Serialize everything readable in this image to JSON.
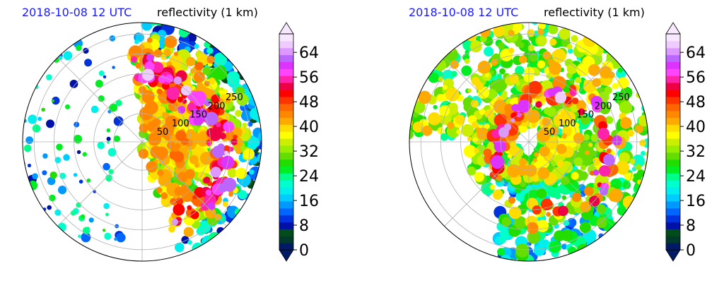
{
  "colors": {
    "time_label": "#1a1aff",
    "grid": "#b0b0b0",
    "colorbar": [
      "#001a66",
      "#003a2a",
      "#004d1a",
      "#0011aa",
      "#0033dd",
      "#0066ff",
      "#0099ff",
      "#00ccff",
      "#00eeee",
      "#00ffcc",
      "#00ff88",
      "#00ee22",
      "#22dd00",
      "#66dd00",
      "#99ee00",
      "#ccee00",
      "#ffff00",
      "#ffdd00",
      "#ffaa00",
      "#ff8800",
      "#ff6600",
      "#ff3300",
      "#ff0000",
      "#ee0044",
      "#ff22aa",
      "#ff44ff",
      "#dd33ff",
      "#bb66ff",
      "#dd99ff",
      "#eeccff",
      "#f8e8ff"
    ]
  },
  "chart_data": [
    {
      "type": "heatmap",
      "time_label": "2018-10-08 12 UTC",
      "field_label": "reflectivity (1 km)",
      "radial_labels": [
        "50",
        "100",
        "150",
        "200",
        "250"
      ],
      "colorbar": {
        "ticks": [
          "0",
          "8",
          "16",
          "24",
          "32",
          "40",
          "48",
          "56",
          "64"
        ],
        "range": [
          0,
          70
        ]
      }
    },
    {
      "type": "heatmap",
      "time_label": "2018-10-08 12 UTC",
      "field_label": "reflectivity (1 km)",
      "radial_labels": [
        "50",
        "100",
        "150",
        "200",
        "250"
      ],
      "colorbar": {
        "ticks": [
          "0",
          "8",
          "16",
          "24",
          "32",
          "40",
          "48",
          "56",
          "64"
        ],
        "range": [
          0,
          70
        ]
      }
    }
  ]
}
